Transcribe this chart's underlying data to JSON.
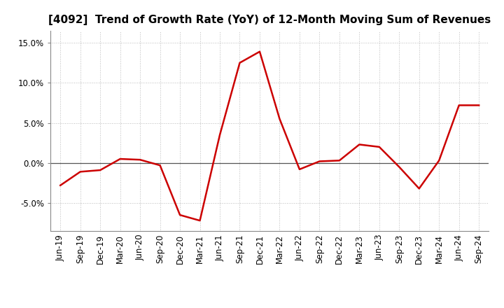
{
  "title": "[4092]  Trend of Growth Rate (YoY) of 12-Month Moving Sum of Revenues",
  "x_labels": [
    "Jun-19",
    "Sep-19",
    "Dec-19",
    "Mar-20",
    "Jun-20",
    "Sep-20",
    "Dec-20",
    "Mar-21",
    "Jun-21",
    "Sep-21",
    "Dec-21",
    "Mar-22",
    "Jun-22",
    "Sep-22",
    "Dec-22",
    "Mar-23",
    "Jun-23",
    "Sep-23",
    "Dec-23",
    "Mar-24",
    "Jun-24",
    "Sep-24"
  ],
  "y_values": [
    -2.8,
    -1.1,
    -0.9,
    0.5,
    0.4,
    -0.3,
    -6.5,
    -7.2,
    3.5,
    12.5,
    13.9,
    5.5,
    -0.8,
    0.2,
    0.3,
    2.3,
    2.0,
    -0.5,
    -3.2,
    0.3,
    7.2,
    7.2
  ],
  "line_color": "#cc0000",
  "line_width": 1.8,
  "ylim": [
    -8.5,
    16.5
  ],
  "yticks": [
    -5.0,
    0.0,
    5.0,
    10.0,
    15.0
  ],
  "grid_color": "#bbbbbb",
  "background_color": "#ffffff",
  "title_fontsize": 11,
  "tick_fontsize": 8.5,
  "zero_line_color": "#555555"
}
